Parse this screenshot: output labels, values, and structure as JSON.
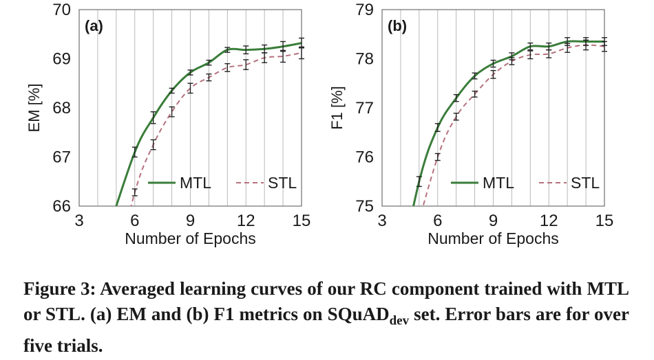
{
  "chart_data": [
    {
      "type": "line",
      "panel_label": "(a)",
      "xlabel": "Number of Epochs",
      "ylabel": "EM [%]",
      "xlim": [
        3,
        15
      ],
      "ylim": [
        66,
        70
      ],
      "xticks": [
        "3",
        "6",
        "9",
        "12",
        "15"
      ],
      "yticks": [
        "66",
        "67",
        "68",
        "69",
        "70"
      ],
      "grid": "vertical",
      "legend_position": "lower-right",
      "series": [
        {
          "name": "MTL",
          "color": "#3a7d3a",
          "dash": "solid",
          "x": [
            6,
            7,
            8,
            9,
            10,
            11,
            12,
            13,
            14,
            15
          ],
          "y": [
            67.1,
            67.8,
            68.35,
            68.72,
            68.92,
            69.18,
            69.18,
            69.2,
            69.25,
            69.32
          ],
          "error": [
            0.1,
            0.12,
            0.05,
            0.05,
            0.05,
            0.05,
            0.08,
            0.08,
            0.1,
            0.1
          ]
        },
        {
          "name": "STL",
          "color": "#b5707d",
          "dash": "dashed",
          "x": [
            6,
            7,
            8,
            9,
            10,
            11,
            12,
            13,
            14,
            15
          ],
          "y": [
            66.28,
            67.25,
            67.92,
            68.4,
            68.62,
            68.82,
            68.88,
            69.02,
            69.05,
            69.12
          ],
          "error": [
            0.07,
            0.1,
            0.1,
            0.1,
            0.07,
            0.08,
            0.1,
            0.1,
            0.12,
            0.12
          ]
        }
      ]
    },
    {
      "type": "line",
      "panel_label": "(b)",
      "xlabel": "Number of Epochs",
      "ylabel": "F1 [%]",
      "xlim": [
        3,
        15
      ],
      "ylim": [
        75,
        79
      ],
      "xticks": [
        "3",
        "6",
        "9",
        "12",
        "15"
      ],
      "yticks": [
        "75",
        "76",
        "77",
        "78",
        "79"
      ],
      "grid": "vertical",
      "legend_position": "lower-right",
      "series": [
        {
          "name": "MTL",
          "color": "#3a7d3a",
          "dash": "solid",
          "x": [
            5,
            6,
            7,
            8,
            9,
            10,
            11,
            12,
            13,
            14,
            15
          ],
          "y": [
            75.5,
            76.6,
            77.2,
            77.65,
            77.9,
            78.05,
            78.25,
            78.25,
            78.35,
            78.35,
            78.35
          ],
          "error": [
            0.1,
            0.08,
            0.07,
            0.06,
            0.07,
            0.07,
            0.07,
            0.07,
            0.08,
            0.08,
            0.08
          ]
        },
        {
          "name": "STL",
          "color": "#b5707d",
          "dash": "dashed",
          "x": [
            6,
            7,
            8,
            9,
            10,
            11,
            12,
            13,
            14,
            15
          ],
          "y": [
            76.0,
            76.82,
            77.28,
            77.68,
            77.95,
            78.08,
            78.1,
            78.22,
            78.28,
            78.25
          ],
          "error": [
            0.07,
            0.07,
            0.06,
            0.08,
            0.07,
            0.08,
            0.08,
            0.09,
            0.1,
            0.1
          ]
        }
      ]
    }
  ],
  "caption": {
    "text": "Figure 3: Averaged learning curves of our RC component trained with MTL or STL. (a) EM and (b) F1 metrics on SQuAD",
    "subscript": "dev",
    "tail": " set. Error bars are for over five trials."
  }
}
